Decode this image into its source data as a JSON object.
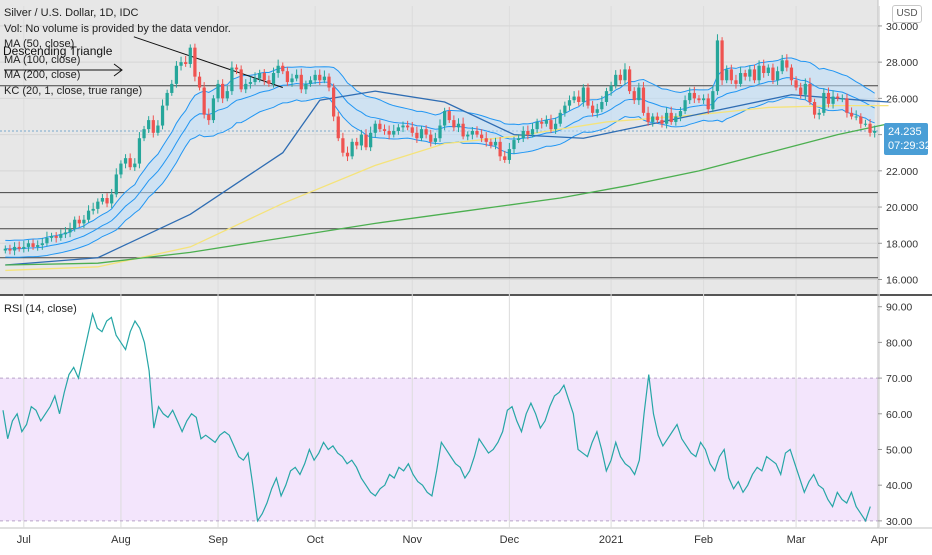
{
  "header": {
    "symbol_line": "Silver / U.S. Dollar, 1D, IDC",
    "vol_note": "Vol: No volume is provided by the data vendor.",
    "ma50": "MA (50, close)",
    "ma100": "MA (100, close)",
    "ma200": "MA (200, close)",
    "kc": "KC (20, 1, close, true range)",
    "annotation": "Descending Triangle",
    "currency": "USD"
  },
  "last": {
    "price": "24.235",
    "countdown": "07:29:32"
  },
  "rsi_title": "RSI (14, close)",
  "colors": {
    "up": "#26a69a",
    "down": "#ef5350",
    "ma50": "#f5e37a",
    "ma100": "#2f6db3",
    "ma200": "#4caf50",
    "kc": "#2196f3",
    "kc_fill": "#bbdefb",
    "rsi": "#26a6a6",
    "rsi_band": "#f3e5fc",
    "accent": "#4a9ed6"
  },
  "chart_data": [
    {
      "type": "candlestick",
      "title": "Silver / U.S. Dollar, 1D, IDC",
      "grid": true,
      "y_ticks": [
        "30.000",
        "28.000",
        "26.000",
        "24.000",
        "22.000",
        "20.000",
        "18.000",
        "16.000"
      ],
      "ylim": [
        15.2,
        31.1
      ],
      "x_ticks": [
        "Jul",
        "Aug",
        "Sep",
        "Oct",
        "Nov",
        "Dec",
        "2021",
        "Feb",
        "Mar",
        "Apr"
      ],
      "horizontal_lines": [
        26.7,
        20.8,
        18.8,
        17.2,
        16.1
      ],
      "trendline": [
        [
          27.8,
          29.4
        ],
        [
          60.0,
          26.6
        ]
      ],
      "close_series": [
        17.7,
        17.6,
        17.8,
        17.7,
        17.8,
        18.0,
        17.8,
        17.9,
        18.0,
        18.3,
        18.4,
        18.3,
        18.5,
        18.6,
        18.8,
        19.3,
        19.1,
        19.3,
        19.8,
        19.9,
        20.3,
        20.5,
        20.2,
        20.7,
        21.8,
        22.4,
        22.7,
        22.2,
        22.4,
        23.8,
        24.3,
        24.8,
        24.1,
        24.5,
        25.6,
        26.3,
        26.8,
        27.8,
        28.0,
        27.9,
        28.8,
        27.2,
        26.6,
        25.1,
        24.8,
        26.0,
        26.8,
        26.0,
        26.4,
        27.7,
        27.6,
        26.5,
        26.8,
        26.9,
        27.1,
        27.4,
        27.0,
        26.8,
        27.4,
        27.8,
        27.5,
        26.9,
        27.1,
        27.3,
        26.5,
        26.8,
        27.0,
        27.3,
        27.0,
        27.2,
        26.6,
        25.0,
        23.8,
        23.0,
        22.8,
        23.6,
        23.4,
        24.0,
        23.3,
        24.1,
        24.6,
        24.3,
        24.2,
        24.0,
        24.2,
        24.4,
        24.5,
        24.4,
        24.1,
        23.8,
        24.3,
        24.0,
        23.6,
        23.8,
        24.5,
        25.3,
        24.8,
        24.4,
        24.6,
        23.9,
        24.0,
        24.2,
        24.0,
        23.8,
        23.6,
        23.4,
        23.6,
        22.8,
        22.6,
        23.2,
        23.7,
        23.8,
        24.2,
        24.0,
        24.3,
        24.7,
        24.6,
        24.8,
        24.3,
        24.6,
        25.2,
        25.6,
        25.9,
        26.1,
        25.8,
        26.6,
        25.6,
        25.2,
        25.4,
        25.8,
        26.4,
        26.7,
        27.3,
        27.0,
        27.6,
        26.4,
        25.9,
        26.6,
        25.2,
        24.7,
        25.0,
        24.8,
        24.6,
        25.2,
        24.7,
        25.0,
        25.3,
        25.9,
        26.3,
        26.0,
        25.9,
        26.0,
        25.4,
        26.4,
        29.2,
        27.0,
        27.6,
        27.0,
        26.8,
        27.4,
        27.2,
        27.6,
        27.0,
        27.8,
        27.4,
        27.7,
        27.0,
        27.5,
        28.1,
        27.7,
        27.0,
        26.6,
        26.2,
        26.8,
        25.8,
        25.1,
        25.2,
        26.3,
        25.7,
        26.1,
        26.0,
        26.0,
        25.2,
        25.0,
        25.0,
        24.6,
        24.6,
        24.1,
        24.2
      ],
      "series": [
        {
          "name": "MA (50, close)",
          "points": [
            [
              0,
              16.5
            ],
            [
              20,
              16.7
            ],
            [
              40,
              17.8
            ],
            [
              60,
              20.2
            ],
            [
              80,
              22.3
            ],
            [
              95,
              23.5
            ],
            [
              110,
              23.9
            ],
            [
              130,
              24.7
            ],
            [
              150,
              25.1
            ],
            [
              165,
              25.5
            ],
            [
              180,
              25.6
            ],
            [
              191,
              25.6
            ]
          ]
        },
        {
          "name": "MA (100, close)",
          "points": [
            [
              0,
              16.8
            ],
            [
              20,
              17.2
            ],
            [
              40,
              19.6
            ],
            [
              60,
              23.0
            ],
            [
              68,
              25.9
            ],
            [
              80,
              26.4
            ],
            [
              95,
              25.8
            ],
            [
              110,
              24.0
            ],
            [
              125,
              23.8
            ],
            [
              140,
              24.6
            ],
            [
              155,
              25.4
            ],
            [
              170,
              26.2
            ],
            [
              185,
              25.9
            ],
            [
              191,
              25.8
            ]
          ]
        },
        {
          "name": "MA (200, close)",
          "points": [
            [
              0,
              16.8
            ],
            [
              20,
              16.9
            ],
            [
              40,
              17.5
            ],
            [
              60,
              18.3
            ],
            [
              80,
              19.1
            ],
            [
              100,
              19.8
            ],
            [
              120,
              20.5
            ],
            [
              135,
              21.2
            ],
            [
              150,
              22.0
            ],
            [
              165,
              23.0
            ],
            [
              180,
              24.0
            ],
            [
              191,
              24.6
            ]
          ]
        }
      ]
    },
    {
      "type": "line",
      "title": "RSI (14, close)",
      "y_ticks": [
        "90.00",
        "80.00",
        "70.00",
        "60.00",
        "50.00",
        "40.00",
        "30.00"
      ],
      "ylim": [
        28,
        93
      ],
      "band": [
        30,
        70
      ],
      "series": [
        {
          "name": "RSI (14, close)",
          "values": [
            61,
            53,
            58,
            60,
            55,
            57,
            62,
            61,
            58,
            60,
            62,
            65,
            60,
            66,
            71,
            73,
            70,
            76,
            82,
            88,
            84,
            83,
            86,
            87,
            82,
            80,
            78,
            83,
            86,
            84,
            80,
            72,
            56,
            62,
            60,
            59,
            61,
            58,
            55,
            58,
            60,
            59,
            53,
            54,
            53,
            52,
            54,
            55,
            54,
            51,
            48,
            47,
            49,
            40,
            30,
            32,
            35,
            39,
            42,
            37,
            40,
            44,
            45,
            43,
            46,
            50,
            47,
            49,
            52,
            50,
            51,
            49,
            48,
            46,
            47,
            45,
            42,
            40,
            38,
            37,
            39,
            40,
            43,
            42,
            45,
            44,
            46,
            43,
            41,
            40,
            38,
            37,
            44,
            52,
            50,
            48,
            46,
            45,
            42,
            44,
            48,
            53,
            51,
            49,
            50,
            52,
            55,
            61,
            62,
            58,
            55,
            60,
            63,
            60,
            56,
            58,
            62,
            65,
            66,
            68,
            64,
            60,
            50,
            49,
            48,
            52,
            55,
            50,
            44,
            47,
            52,
            48,
            46,
            45,
            43,
            47,
            60,
            71,
            60,
            54,
            51,
            53,
            55,
            57,
            53,
            51,
            49,
            48,
            52,
            50,
            46,
            44,
            48,
            50,
            42,
            39,
            41,
            38,
            40,
            43,
            45,
            44,
            48,
            47,
            46,
            43,
            49,
            50,
            46,
            42,
            38,
            41,
            43,
            40,
            39,
            36,
            34,
            38,
            36,
            35,
            38,
            34,
            32,
            30,
            34
          ]
        }
      ]
    }
  ]
}
